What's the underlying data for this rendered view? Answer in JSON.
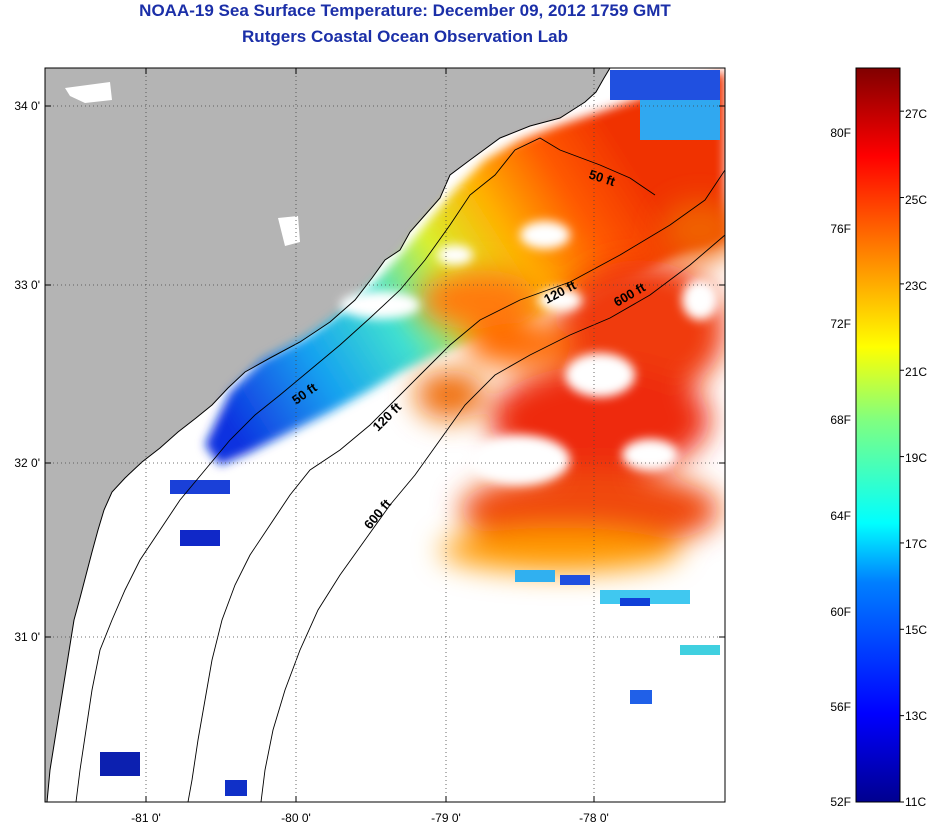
{
  "header": {
    "title": "NOAA-19 Sea Surface Temperature:  December 09, 2012 1759 GMT",
    "subtitle": "Rutgers Coastal Ocean Observation Lab"
  },
  "map": {
    "lon_range": [
      -81.6,
      -77.2
    ],
    "lat_range": [
      30.0,
      34.2
    ],
    "lat_ticks": [
      {
        "value": 31,
        "label": "31 0'"
      },
      {
        "value": 32,
        "label": "32 0'"
      },
      {
        "value": 33,
        "label": "33 0'"
      },
      {
        "value": 34,
        "label": "34 0'"
      }
    ],
    "lon_ticks": [
      {
        "value": -81,
        "label": "-81 0'"
      },
      {
        "value": -80,
        "label": "-80 0'"
      },
      {
        "value": -79,
        "label": "-79 0'"
      },
      {
        "value": -78,
        "label": "-78 0'"
      }
    ],
    "contour_labels": [
      {
        "label": "50 ft",
        "lon": -78.0,
        "lat": 33.6
      },
      {
        "label": "120 ft",
        "lon": -78.3,
        "lat": 32.95
      },
      {
        "label": "600 ft",
        "lon": -77.75,
        "lat": 32.95
      },
      {
        "label": "50 ft",
        "lon": -79.9,
        "lat": 32.4
      },
      {
        "label": "120 ft",
        "lon": -79.35,
        "lat": 32.25
      },
      {
        "label": "600 ft",
        "lon": -79.5,
        "lat": 31.7
      }
    ],
    "colors": {
      "land": "#b4b4b4",
      "no_data": "#ffffff",
      "grid": "#444444"
    }
  },
  "colorbar": {
    "range_c": [
      11,
      28
    ],
    "celsius_labels": [
      "11C",
      "13C",
      "15C",
      "17C",
      "19C",
      "21C",
      "23C",
      "25C",
      "27C"
    ],
    "fahrenheit_labels": [
      "52F",
      "56F",
      "60F",
      "64F",
      "68F",
      "72F",
      "76F",
      "80F"
    ]
  }
}
